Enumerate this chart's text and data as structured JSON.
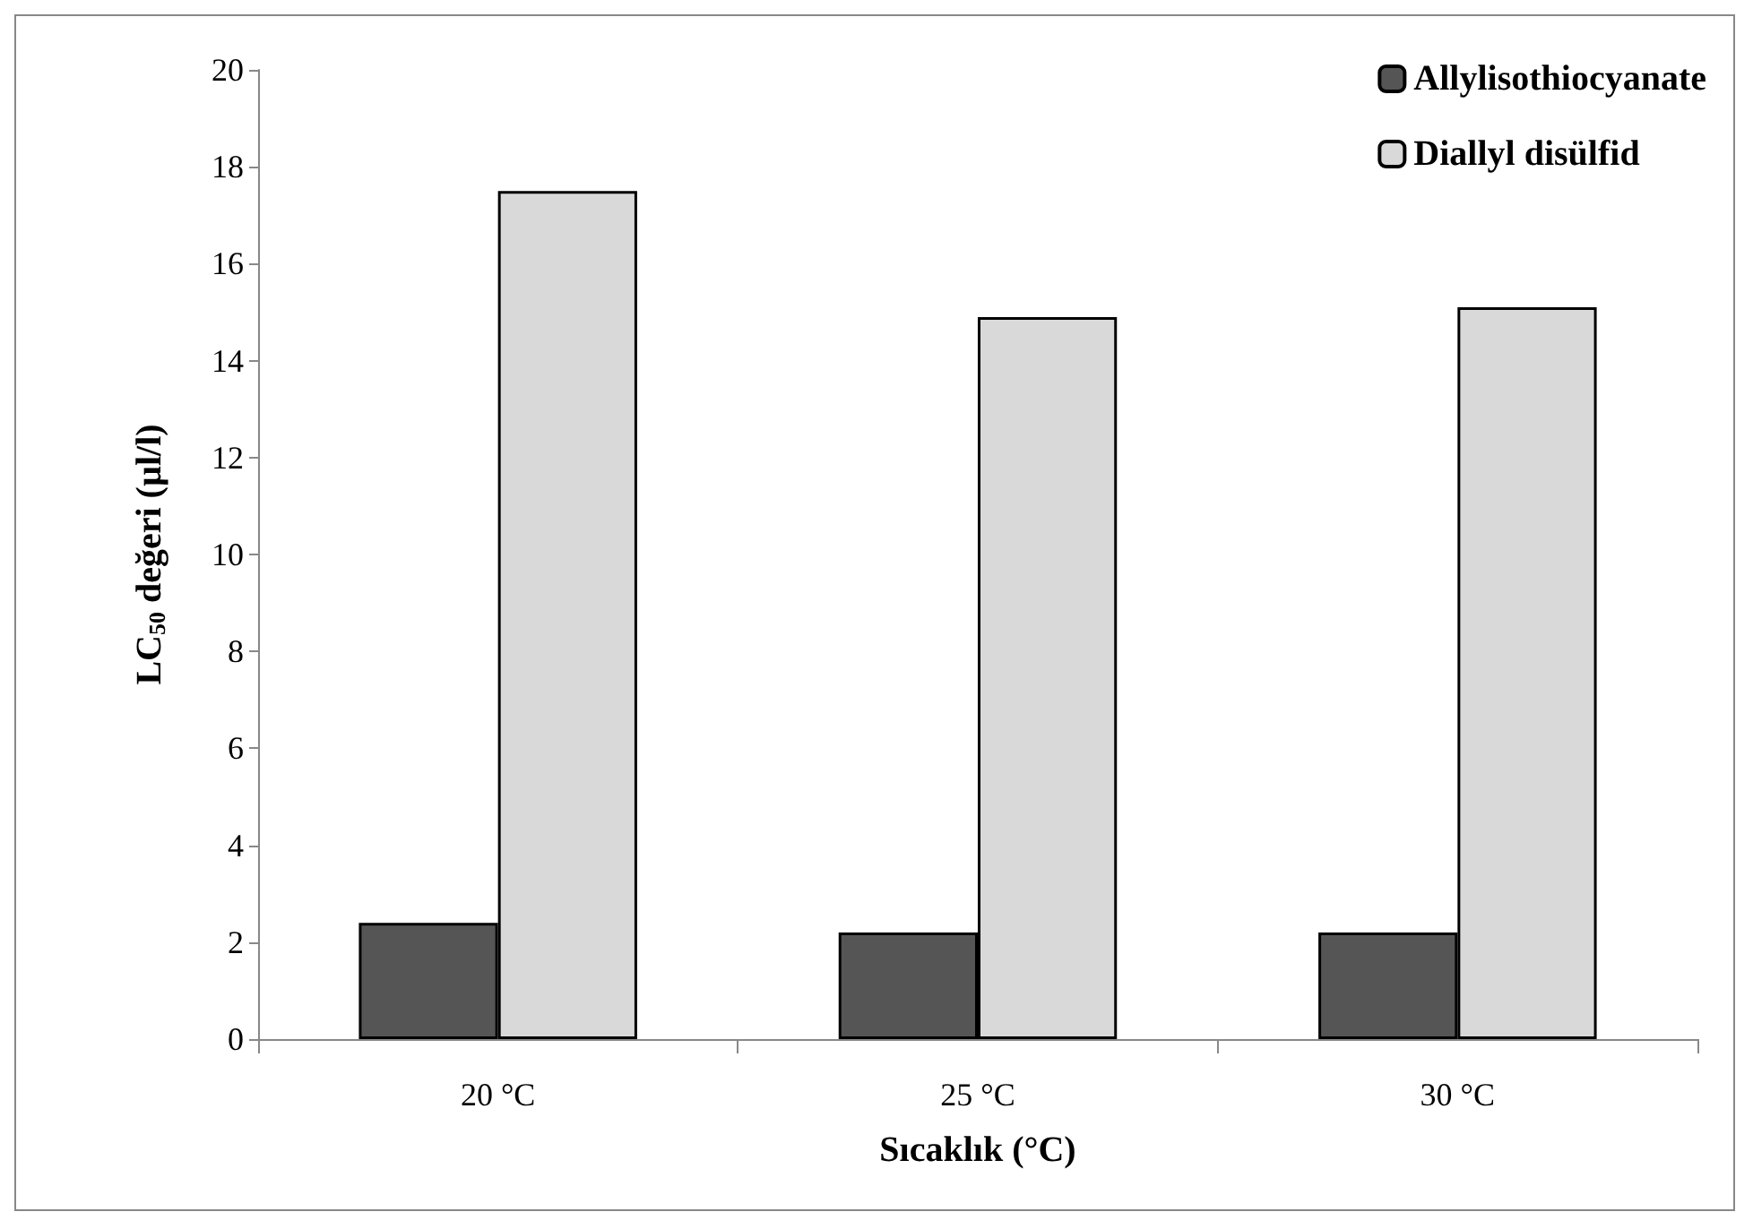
{
  "chart_data": {
    "type": "bar",
    "xlabel": "Sıcaklık (°C)",
    "ylabel": "LC$_{50}$ değeri (µl/l)",
    "categories": [
      "20 °C",
      "25 °C",
      "30 °C"
    ],
    "series": [
      {
        "name": "Allylisothiocyanate",
        "color": "#555555",
        "values": [
          2.4,
          2.2,
          2.2
        ]
      },
      {
        "name": "Diallyl disülfid",
        "color": "#d9d9d9",
        "values": [
          17.5,
          14.9,
          15.1
        ]
      }
    ],
    "ylim": [
      0,
      20
    ],
    "yticks": [
      0,
      2,
      4,
      6,
      8,
      10,
      12,
      14,
      16,
      18,
      20
    ],
    "grid": false,
    "legend": "top right"
  }
}
